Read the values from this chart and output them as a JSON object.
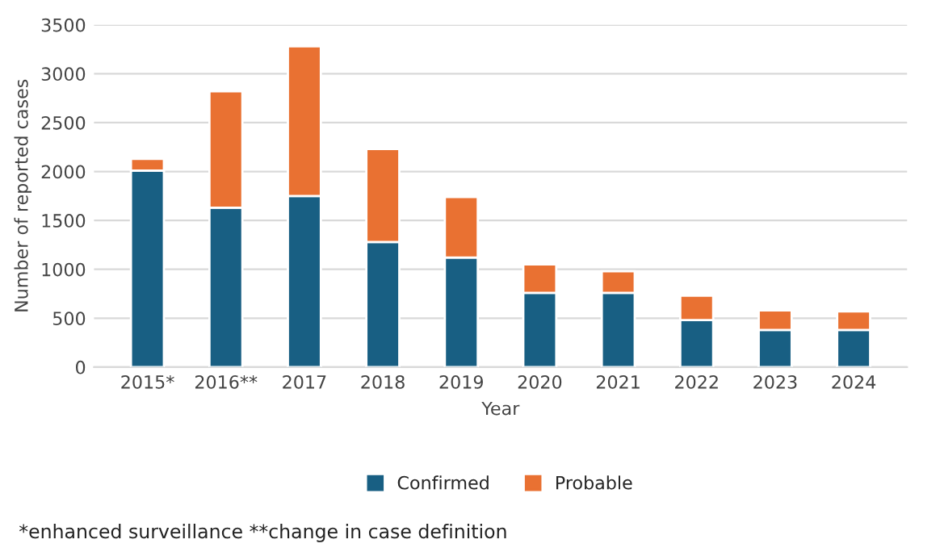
{
  "chart_data": {
    "type": "bar",
    "stacked": true,
    "xlabel": "Year",
    "ylabel": "Number of reported cases",
    "categories": [
      "2015*",
      "2016**",
      "2017",
      "2018",
      "2019",
      "2020",
      "2021",
      "2022",
      "2023",
      "2024"
    ],
    "series": [
      {
        "name": "Confirmed",
        "color": "#185f83",
        "values": [
          2010,
          1630,
          1750,
          1280,
          1120,
          760,
          760,
          480,
          380,
          380
        ]
      },
      {
        "name": "Probable",
        "color": "#e97132",
        "values": [
          120,
          1190,
          1530,
          950,
          620,
          290,
          220,
          250,
          200,
          190
        ]
      }
    ],
    "ylim": [
      0,
      3500
    ],
    "yticks": [
      0,
      500,
      1000,
      1500,
      2000,
      2500,
      3000,
      3500
    ],
    "grid": "y",
    "legend": "bottom",
    "annotations": [
      "*enhanced surveillance **change in case definition"
    ]
  }
}
